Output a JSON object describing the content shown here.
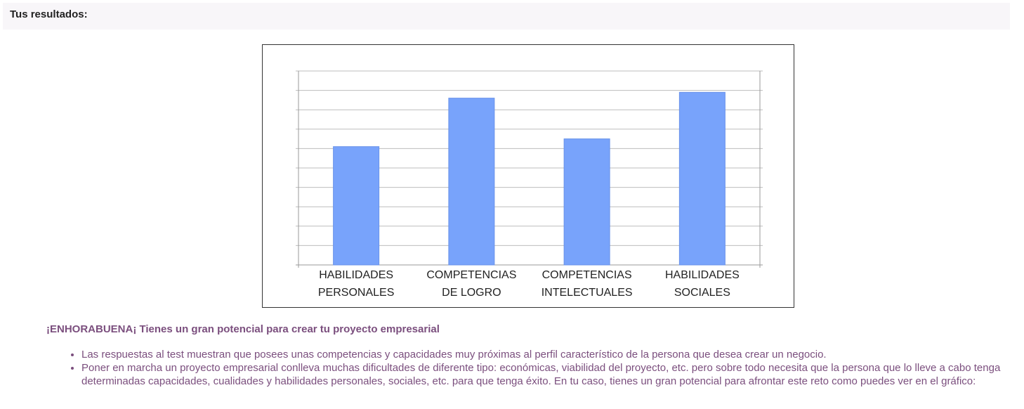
{
  "header": {
    "title": "Tus resultados:"
  },
  "colors": {
    "bar": "#78a3fb",
    "text_accent": "#7b4f7e",
    "grid": "#bdbdbd"
  },
  "chart_data": {
    "type": "bar",
    "categories": [
      [
        "HABILIDADES",
        "PERSONALES"
      ],
      [
        "COMPETENCIAS",
        "DE LOGRO"
      ],
      [
        "COMPETENCIAS",
        "INTELECTUALES"
      ],
      [
        "HABILIDADES",
        "SOCIALES"
      ]
    ],
    "values": [
      6.1,
      8.6,
      6.5,
      8.9
    ],
    "ylim": [
      0,
      10
    ],
    "grid": true,
    "yticks_labeled": false
  },
  "result": {
    "heading": "¡ENHORABUENA¡ Tienes un gran potencial para crear tu proyecto empresarial",
    "bullets": [
      "Las respuestas al test muestran que posees unas competencias y capacidades muy próximas al perfil característico de la persona que desea crear un negocio.",
      "Poner en marcha un proyecto empresarial conlleva muchas dificultades de diferente tipo: económicas, viabilidad del proyecto, etc. pero sobre todo necesita que la persona que lo lleve a cabo tenga determinadas capacidades, cualidades y habilidades personales, sociales, etc. para que tenga éxito. En tu caso, tienes un gran potencial para afrontar este reto como puedes ver en el gráfico:"
    ]
  }
}
